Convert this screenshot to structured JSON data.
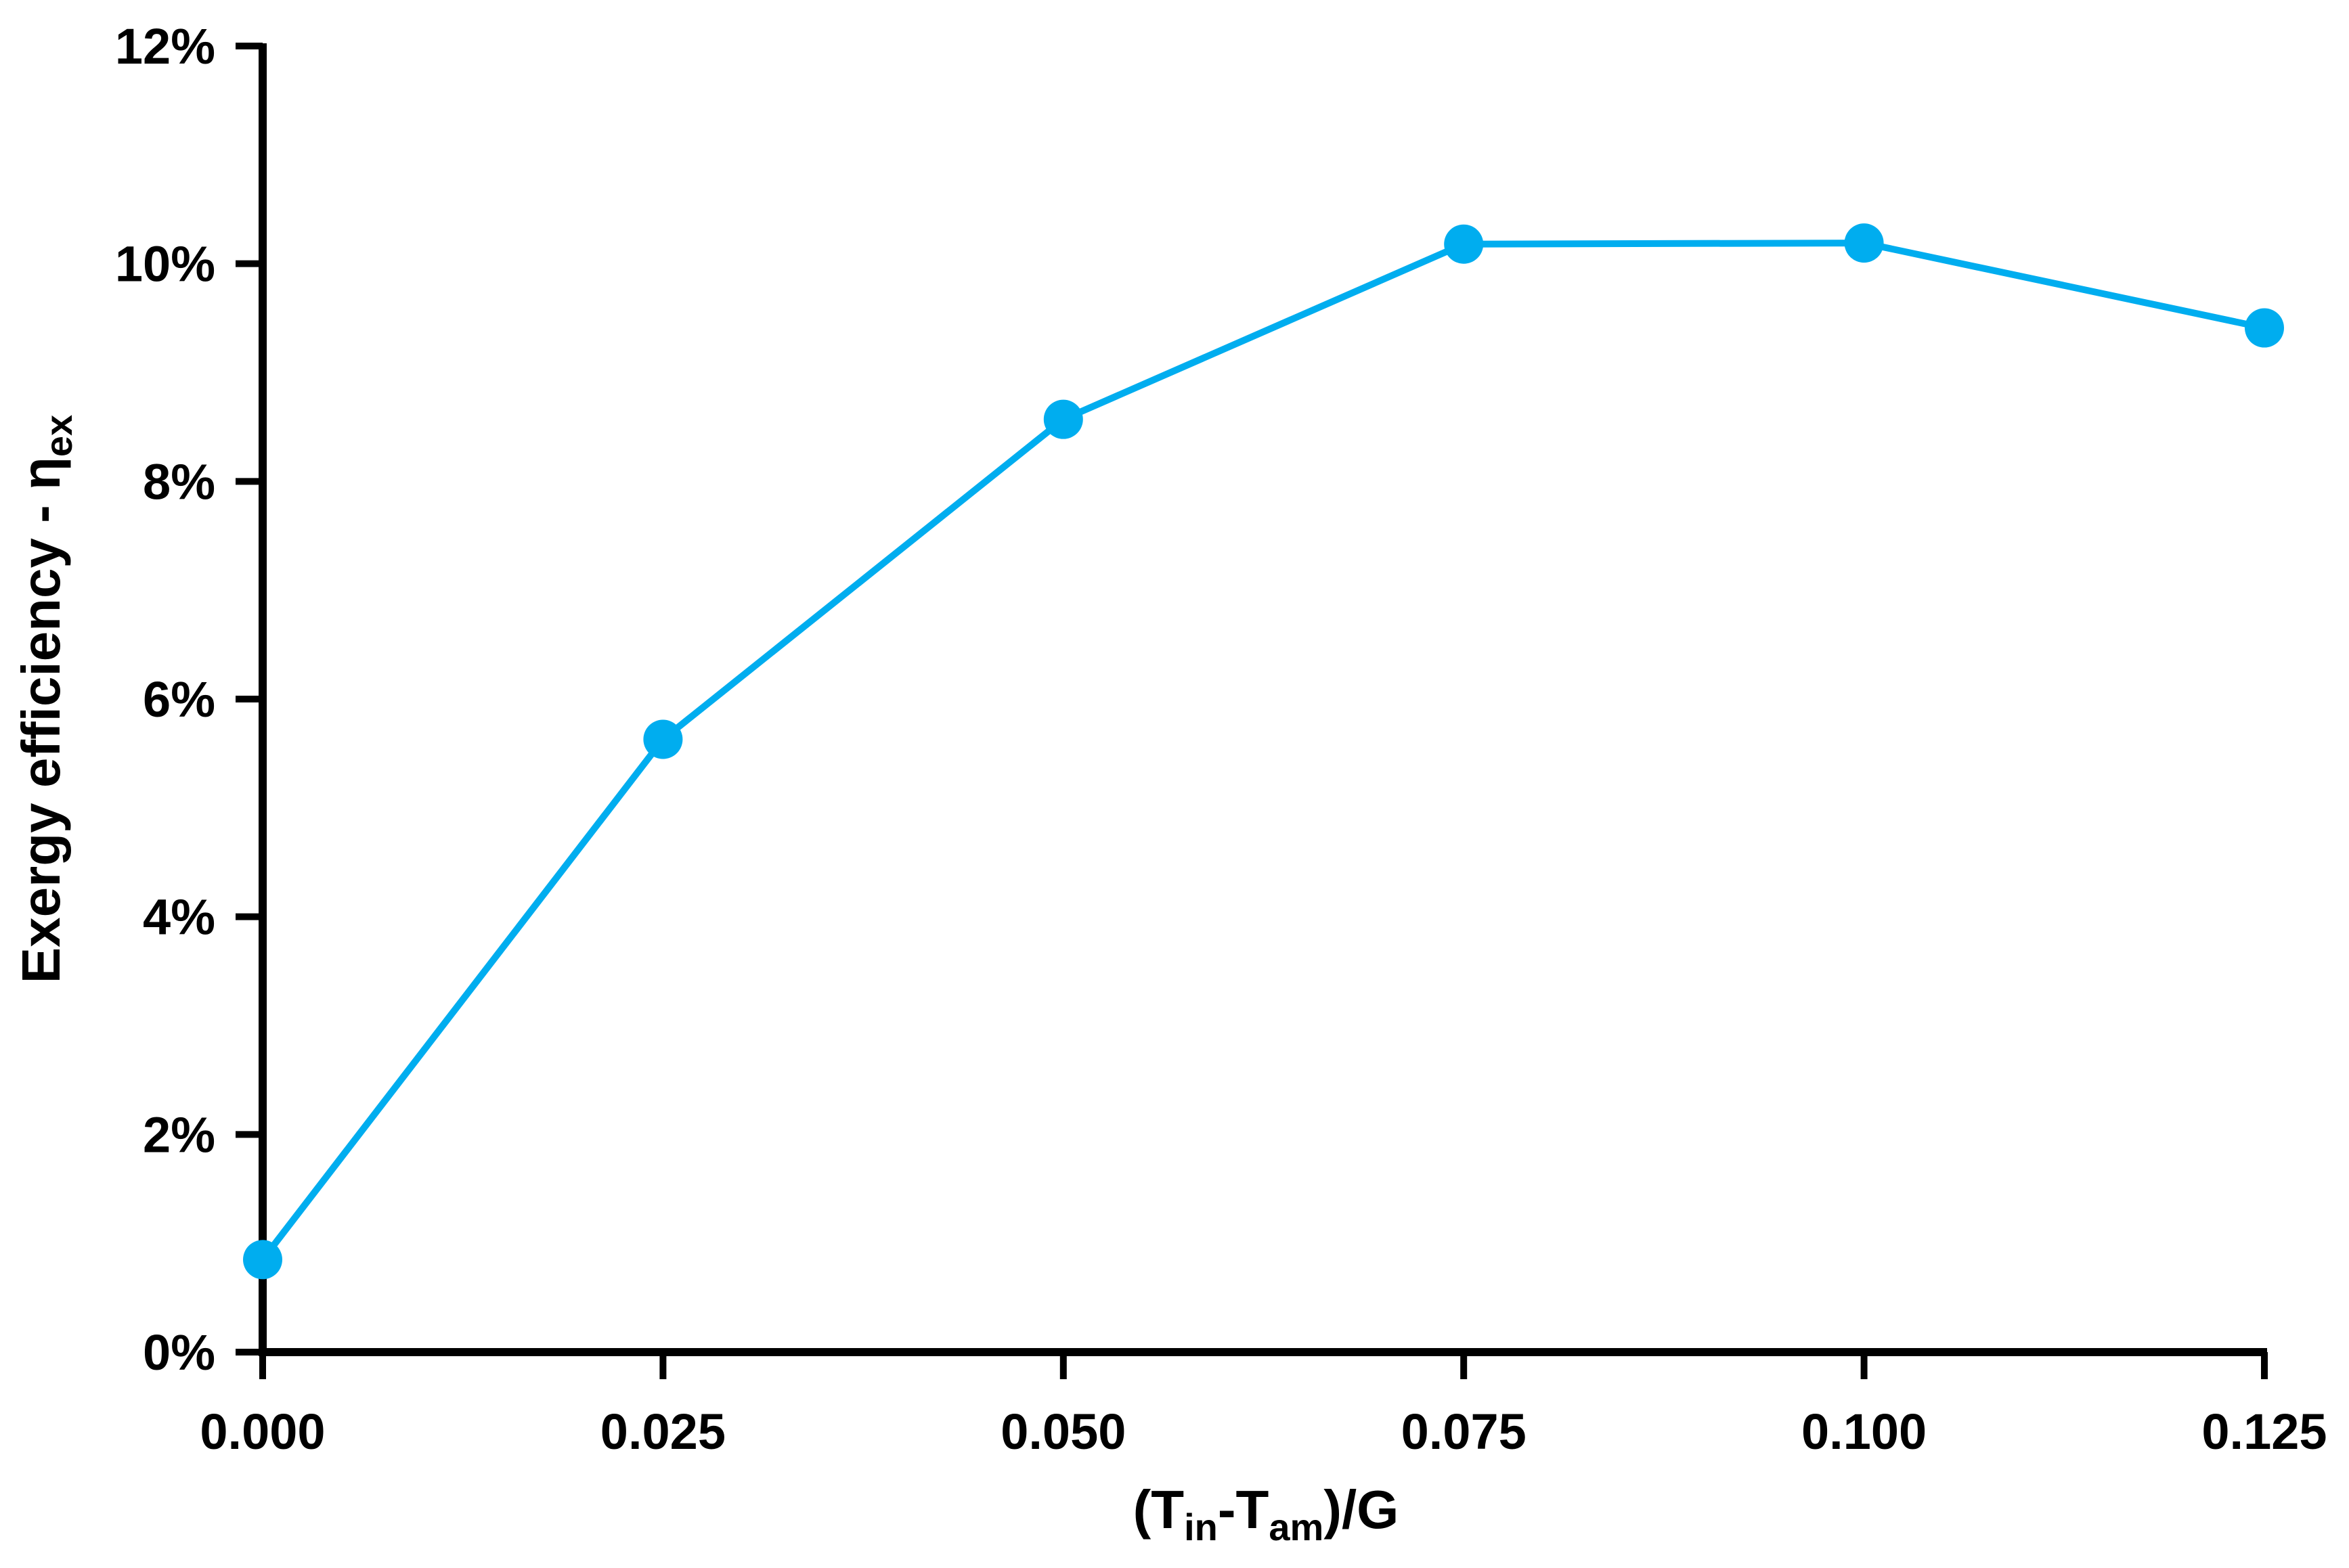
{
  "colors": {
    "series": "#00adef",
    "axis": "#000000",
    "background": "#ffffff"
  },
  "chart_data": {
    "type": "line",
    "title": "",
    "xlabel": "(Tin-Tam)/G",
    "xlabel_parts": [
      "(T",
      "in",
      "-T",
      "am",
      ")/G"
    ],
    "ylabel": "Exergy efficiency - ηex",
    "ylabel_parts": [
      "Exergy efficiency - η",
      "ex"
    ],
    "xlim": [
      0,
      0.125
    ],
    "ylim": [
      0,
      0.12
    ],
    "x_ticks": [
      0,
      0.025,
      0.05,
      0.075,
      0.1,
      0.125
    ],
    "x_tick_labels": [
      "0.000",
      "0.025",
      "0.050",
      "0.075",
      "0.100",
      "0.125"
    ],
    "y_ticks": [
      0,
      0.02,
      0.04,
      0.06,
      0.08,
      0.1,
      0.12
    ],
    "y_tick_labels": [
      "0%",
      "2%",
      "4%",
      "6%",
      "8%",
      "10%",
      "12%"
    ],
    "grid": false,
    "legend": "none",
    "series": [
      {
        "x": [
          0,
          0.025,
          0.05,
          0.075,
          0.1,
          0.125
        ],
        "y": [
          0.0085,
          0.0563,
          0.0857,
          0.1018,
          0.1019,
          0.0941
        ],
        "color": "#00adef",
        "marker": "circle"
      }
    ]
  }
}
